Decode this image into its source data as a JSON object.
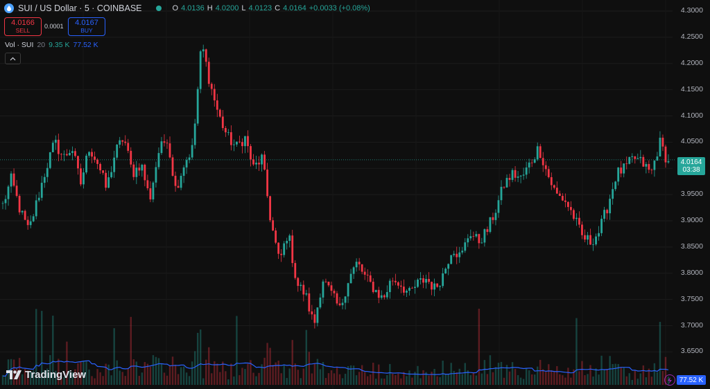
{
  "header": {
    "symbol": "SUI / US Dollar · 5 · COINBASE",
    "ohlc": {
      "o_label": "O",
      "o": "4.0136",
      "h_label": "H",
      "h": "4.0200",
      "l_label": "L",
      "l": "4.0123",
      "c_label": "C",
      "c": "4.0164",
      "change": "+0.0033 (+0.08%)"
    }
  },
  "trade": {
    "sell_price": "4.0166",
    "sell_label": "SELL",
    "spread": "0.0001",
    "buy_price": "4.0167",
    "buy_label": "BUY"
  },
  "volume_indicator": {
    "label": "Vol · SUI",
    "length": "20",
    "value": "9.35 K",
    "ma": "77.52 K"
  },
  "price_tag": {
    "price": "4.0164",
    "countdown": "03:38"
  },
  "volume_tag": "77.52 K",
  "brand": "TradingView",
  "colors": {
    "up": "#26a69a",
    "down": "#f23645",
    "bg": "#0f0f0f",
    "ma": "#2962ff"
  },
  "chart_data": {
    "type": "candlestick",
    "ylim": [
      3.64,
      4.3
    ],
    "y_ticks": [
      "4.3000",
      "4.2500",
      "4.2000",
      "4.1500",
      "4.1000",
      "4.0500",
      "4.0000",
      "3.9500",
      "3.9000",
      "3.8500",
      "3.8000",
      "3.7500",
      "3.7000",
      "3.6500"
    ],
    "last_price": 4.0164,
    "close_path": [
      3.93,
      3.98,
      3.92,
      3.88,
      3.94,
      4.0,
      4.05,
      4.02,
      4.04,
      3.97,
      4.04,
      4.01,
      3.96,
      4.03,
      4.06,
      3.99,
      4.01,
      3.94,
      4.03,
      4.06,
      3.96,
      4.01,
      4.04,
      4.24,
      4.16,
      4.1,
      4.06,
      4.04,
      4.06,
      4.0,
      4.02,
      3.9,
      3.82,
      3.88,
      3.78,
      3.76,
      3.7,
      3.79,
      3.76,
      3.73,
      3.79,
      3.82,
      3.79,
      3.77,
      3.75,
      3.79,
      3.78,
      3.76,
      3.78,
      3.79,
      3.77,
      3.8,
      3.85,
      3.83,
      3.88,
      3.86,
      3.88,
      3.92,
      3.97,
      3.99,
      3.98,
      4.01,
      4.04,
      3.99,
      3.95,
      3.94,
      3.91,
      3.87,
      3.86,
      3.88,
      3.93,
      3.99,
      4.0,
      4.02,
      4.01,
      3.99,
      4.05,
      4.01
    ]
  }
}
